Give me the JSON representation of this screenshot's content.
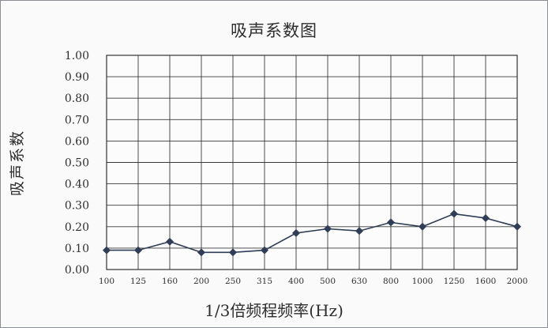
{
  "chart_data": {
    "type": "line",
    "title": "吸声系数图",
    "xlabel": "1/3倍频程频率(Hz)",
    "ylabel": "吸声系数",
    "categories": [
      "100",
      "125",
      "160",
      "200",
      "250",
      "315",
      "400",
      "500",
      "630",
      "800",
      "1000",
      "1250",
      "1600",
      "2000"
    ],
    "y_ticks": [
      "0.00",
      "0.10",
      "0.20",
      "0.30",
      "0.40",
      "0.50",
      "0.60",
      "0.70",
      "0.80",
      "0.90",
      "1.00"
    ],
    "ylim": [
      0,
      1
    ],
    "grid": true,
    "series": [
      {
        "values": [
          0.09,
          0.09,
          0.13,
          0.08,
          0.08,
          0.09,
          0.17,
          0.19,
          0.18,
          0.22,
          0.2,
          0.26,
          0.24,
          0.2
        ],
        "color": "#2f3d56",
        "marker": "diamond"
      }
    ]
  }
}
